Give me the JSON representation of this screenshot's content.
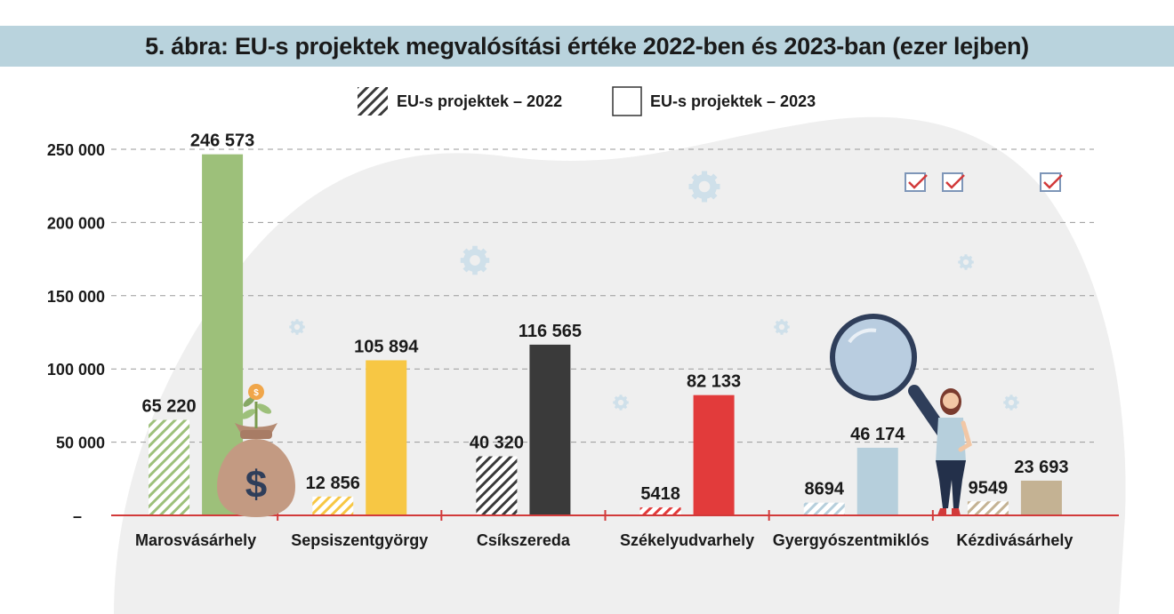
{
  "title": "5. ábra: EU-s projektek megvalósítási értéke 2022-ben és 2023-ban (ezer lejben)",
  "legend": {
    "series_2022": "EU-s projektek – 2022",
    "series_2023": "EU-s projektek – 2023"
  },
  "icons": [
    "gear-icon",
    "checkbox-icon",
    "magnifier-icon",
    "money-bag-icon",
    "dollar-sign-icon",
    "woman-illustration"
  ],
  "colors": {
    "gridline": "#9a9a9a",
    "axis": "#d23a3a",
    "background_blob": "#efefef"
  },
  "chart_data": {
    "type": "bar",
    "categories": [
      "Marosvásárhely",
      "Sepsiszentgyörgy",
      "Csíkszereda",
      "Székelyudvarhely",
      "Gyergyószentmiklós",
      "Kézdivásárhely"
    ],
    "series": [
      {
        "name": "EU-s projektek – 2022",
        "values": [
          65220,
          12856,
          40320,
          5418,
          8694,
          9549
        ],
        "labels": [
          "65 220",
          "12 856",
          "40 320",
          "5418",
          "8694",
          "9549"
        ],
        "pattern": "hatched"
      },
      {
        "name": "EU-s projektek – 2023",
        "values": [
          246573,
          105894,
          116565,
          82133,
          46174,
          23693
        ],
        "labels": [
          "246 573",
          "105 894",
          "116 565",
          "82 133",
          "46 174",
          "23 693"
        ],
        "pattern": "solid"
      }
    ],
    "category_colors": [
      "#9dc07a",
      "#f7c744",
      "#3a3a3a",
      "#e23b3b",
      "#b6cfdc",
      "#c4b293"
    ],
    "ylim": [
      0,
      250000
    ],
    "yticks": [
      0,
      50000,
      100000,
      150000,
      200000,
      250000
    ],
    "ytick_labels": [
      "–",
      "50 000",
      "100 000",
      "150 000",
      "200 000",
      "250 000"
    ],
    "grid": true,
    "legend_position": "top-center"
  }
}
